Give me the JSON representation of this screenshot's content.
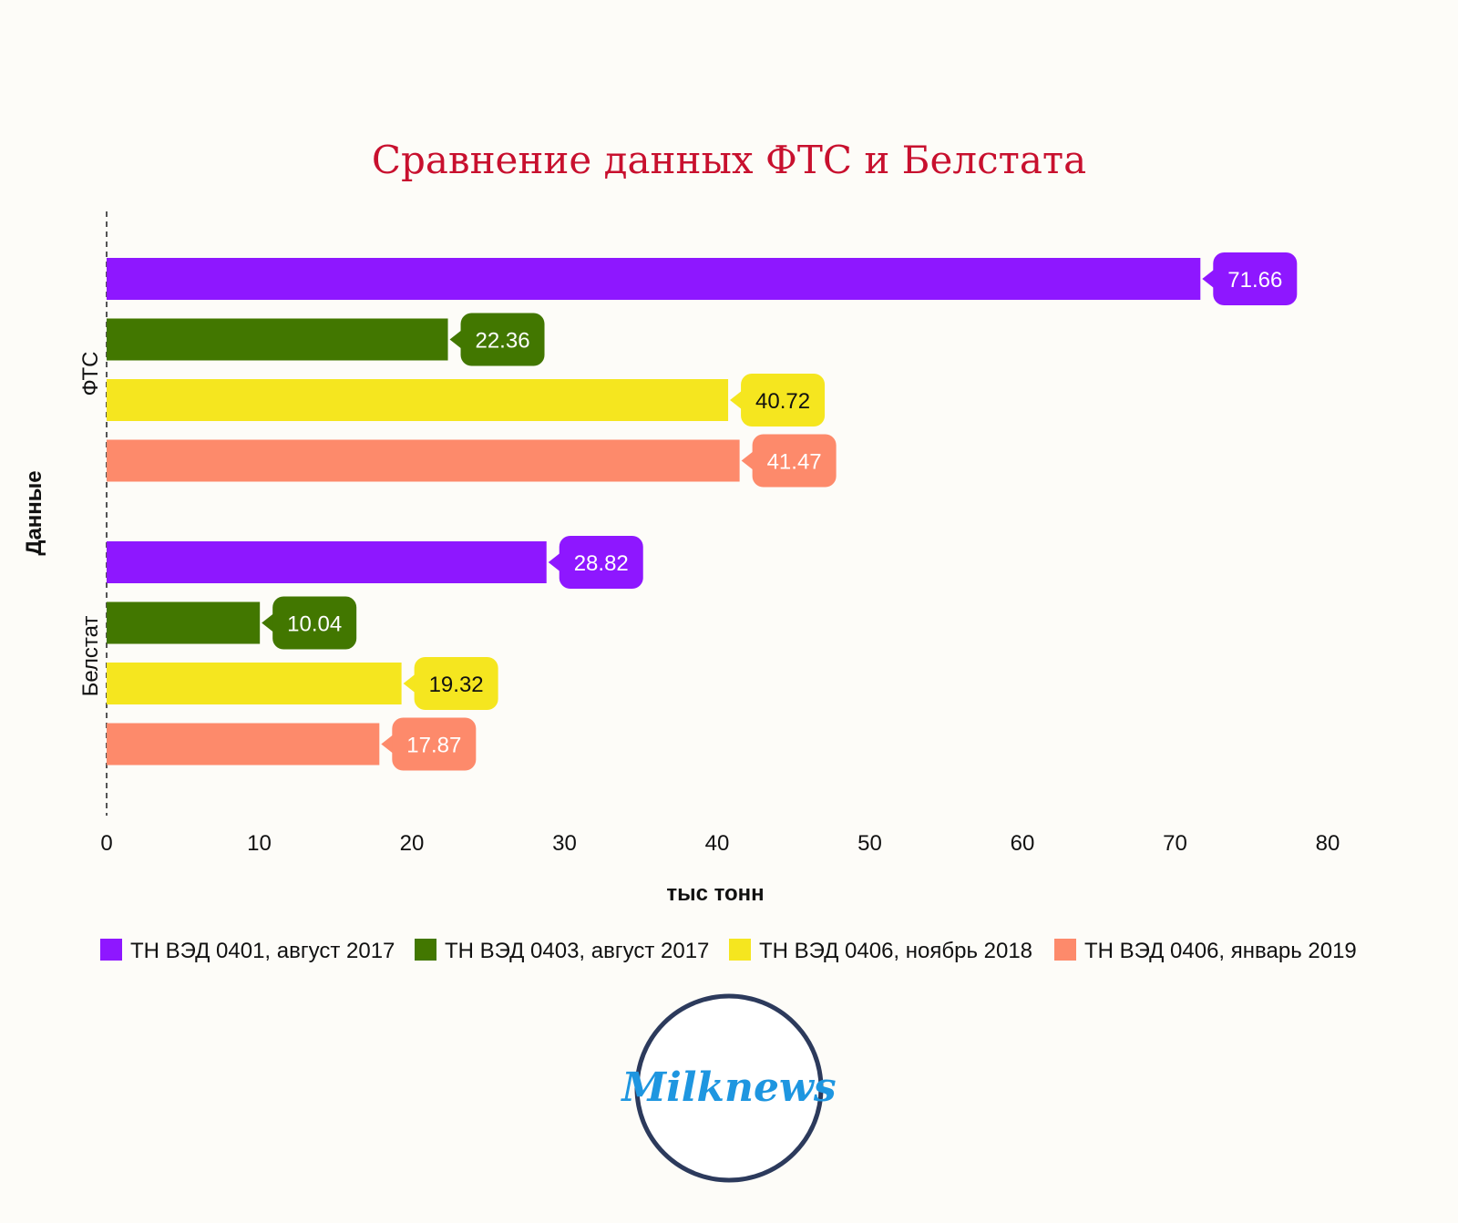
{
  "colors": {
    "title": "#c8102e",
    "logo_ring": "#2c3a5c",
    "logo_text": "#1e96e0",
    "series": [
      "#8e17ff",
      "#427700",
      "#f5e61f",
      "#fd8a6b"
    ],
    "label_text": [
      "#ffffff",
      "#ffffff",
      "#111111",
      "#ffffff"
    ]
  },
  "logo": {
    "text": "Milknews"
  },
  "chart_data": {
    "type": "bar",
    "orientation": "horizontal",
    "title": "Сравнение данных ФТС и Белстата",
    "xlabel": "тыс тонн",
    "ylabel": "Данные",
    "xlim": [
      0,
      80
    ],
    "xticks": [
      0,
      10,
      20,
      30,
      40,
      50,
      60,
      70,
      80
    ],
    "categories": [
      "ФТС",
      "Белстат"
    ],
    "legend_position": "bottom",
    "grid": false,
    "series": [
      {
        "name": "ТН ВЭД 0401, август 2017",
        "values": [
          71.66,
          28.82
        ]
      },
      {
        "name": "ТН ВЭД 0403, август 2017",
        "values": [
          22.36,
          10.04
        ]
      },
      {
        "name": "ТН ВЭД 0406, ноябрь 2018",
        "values": [
          40.72,
          19.32
        ]
      },
      {
        "name": "ТН ВЭД 0406, январь 2019",
        "values": [
          41.47,
          17.87
        ]
      }
    ]
  }
}
